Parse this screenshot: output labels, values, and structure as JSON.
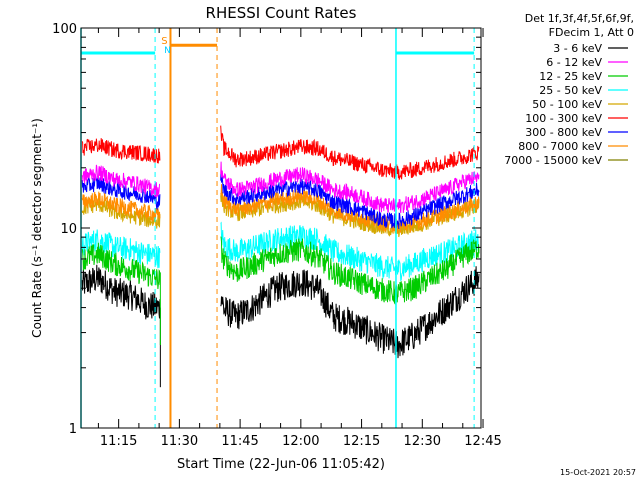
{
  "chart_data": {
    "type": "line",
    "title": "RHESSI Count Rates",
    "xlabel": "Start Time (22-Jun-06 11:05:42)",
    "ylabel": "Count Rate (s⁻¹ detector segment⁻¹)",
    "y_scale": "log",
    "ylim": [
      1,
      100
    ],
    "xlim_minutes": [
      5.7,
      104.5
    ],
    "y_ticks": [
      "1",
      "10",
      "100"
    ],
    "y_tick_values": [
      1,
      10,
      100
    ],
    "x_ticks": [
      "11:15",
      "11:30",
      "11:45",
      "12:00",
      "12:15",
      "12:30",
      "12:45"
    ],
    "x_tick_minutes": [
      15,
      30,
      45,
      60,
      75,
      90,
      105
    ],
    "legend_placement": "outside-right",
    "legend_header": [
      "Det 1f,3f,4f,5f,6f,9f,",
      "FDecim 1, Att 0"
    ],
    "timestamp": "15-Oct-2021 20:57",
    "data_gap_minutes": [
      28.0,
      39.5
    ],
    "series": [
      {
        "name": "3 - 6 keV",
        "color": "#000000",
        "profile": [
          [
            6,
            5.2
          ],
          [
            10,
            5.6
          ],
          [
            14,
            4.8
          ],
          [
            18,
            4.6
          ],
          [
            22,
            4.1
          ],
          [
            25,
            4.0
          ],
          [
            40,
            5.0
          ],
          [
            41,
            3.9
          ],
          [
            44,
            3.6
          ],
          [
            48,
            4.0
          ],
          [
            54,
            5.0
          ],
          [
            60,
            5.4
          ],
          [
            64,
            5.0
          ],
          [
            68,
            3.6
          ],
          [
            72,
            3.4
          ],
          [
            76,
            3.1
          ],
          [
            80,
            2.8
          ],
          [
            84,
            2.6
          ],
          [
            88,
            2.9
          ],
          [
            92,
            3.4
          ],
          [
            96,
            4.0
          ],
          [
            100,
            4.8
          ],
          [
            104,
            5.6
          ]
        ]
      },
      {
        "name": "6 - 12 keV",
        "color": "#ff00ff",
        "profile": [
          [
            6,
            18.0
          ],
          [
            10,
            19.0
          ],
          [
            14,
            17.5
          ],
          [
            18,
            17.0
          ],
          [
            22,
            16.0
          ],
          [
            25,
            15.5
          ],
          [
            40,
            21.0
          ],
          [
            41,
            17.5
          ],
          [
            44,
            15.5
          ],
          [
            48,
            16.0
          ],
          [
            54,
            17.5
          ],
          [
            60,
            18.5
          ],
          [
            64,
            17.5
          ],
          [
            68,
            15.5
          ],
          [
            72,
            15.0
          ],
          [
            76,
            14.0
          ],
          [
            80,
            13.0
          ],
          [
            84,
            12.8
          ],
          [
            88,
            13.5
          ],
          [
            92,
            14.5
          ],
          [
            96,
            15.5
          ],
          [
            100,
            17.0
          ],
          [
            104,
            18.0
          ]
        ]
      },
      {
        "name": "12 - 25 keV",
        "color": "#00cc00",
        "profile": [
          [
            6,
            7.0
          ],
          [
            10,
            7.4
          ],
          [
            14,
            6.6
          ],
          [
            18,
            6.2
          ],
          [
            22,
            5.8
          ],
          [
            25,
            5.5
          ],
          [
            40,
            8.5
          ],
          [
            41,
            6.8
          ],
          [
            44,
            6.0
          ],
          [
            48,
            6.5
          ],
          [
            54,
            7.4
          ],
          [
            60,
            7.8
          ],
          [
            64,
            7.2
          ],
          [
            68,
            6.0
          ],
          [
            72,
            5.6
          ],
          [
            76,
            5.2
          ],
          [
            80,
            4.9
          ],
          [
            84,
            4.7
          ],
          [
            88,
            5.0
          ],
          [
            92,
            5.6
          ],
          [
            96,
            6.2
          ],
          [
            100,
            7.2
          ],
          [
            104,
            8.0
          ]
        ]
      },
      {
        "name": "25 - 50 keV",
        "color": "#00ffff",
        "profile": [
          [
            6,
            8.2
          ],
          [
            10,
            8.8
          ],
          [
            14,
            8.0
          ],
          [
            18,
            7.8
          ],
          [
            22,
            7.4
          ],
          [
            25,
            7.2
          ],
          [
            40,
            10.0
          ],
          [
            41,
            8.2
          ],
          [
            44,
            7.6
          ],
          [
            48,
            8.0
          ],
          [
            54,
            8.8
          ],
          [
            60,
            9.2
          ],
          [
            64,
            8.8
          ],
          [
            68,
            7.6
          ],
          [
            72,
            7.2
          ],
          [
            76,
            6.8
          ],
          [
            80,
            6.4
          ],
          [
            84,
            6.2
          ],
          [
            88,
            6.6
          ],
          [
            92,
            7.2
          ],
          [
            96,
            7.6
          ],
          [
            100,
            8.2
          ],
          [
            104,
            8.8
          ]
        ]
      },
      {
        "name": "50 - 100 keV",
        "color": "#d4a800",
        "profile": [
          [
            6,
            12.5
          ],
          [
            10,
            13.2
          ],
          [
            14,
            12.0
          ],
          [
            18,
            11.5
          ],
          [
            22,
            11.0
          ],
          [
            25,
            10.8
          ],
          [
            40,
            15.5
          ],
          [
            41,
            12.8
          ],
          [
            44,
            11.8
          ],
          [
            48,
            12.2
          ],
          [
            54,
            13.0
          ],
          [
            60,
            13.6
          ],
          [
            64,
            13.0
          ],
          [
            68,
            11.5
          ],
          [
            72,
            11.0
          ],
          [
            76,
            10.5
          ],
          [
            80,
            10.0
          ],
          [
            84,
            9.8
          ],
          [
            88,
            10.2
          ],
          [
            92,
            10.8
          ],
          [
            96,
            11.5
          ],
          [
            100,
            12.2
          ],
          [
            104,
            13.0
          ]
        ]
      },
      {
        "name": "100 - 300 keV",
        "color": "#ff0000",
        "profile": [
          [
            6,
            25.0
          ],
          [
            10,
            26.0
          ],
          [
            14,
            24.5
          ],
          [
            18,
            24.0
          ],
          [
            22,
            23.5
          ],
          [
            25,
            23.0
          ],
          [
            40,
            31.0
          ],
          [
            41,
            25.0
          ],
          [
            44,
            22.0
          ],
          [
            48,
            22.5
          ],
          [
            54,
            24.0
          ],
          [
            60,
            25.5
          ],
          [
            64,
            25.0
          ],
          [
            68,
            22.5
          ],
          [
            72,
            21.5
          ],
          [
            76,
            20.5
          ],
          [
            80,
            19.5
          ],
          [
            84,
            19.0
          ],
          [
            88,
            19.5
          ],
          [
            92,
            20.5
          ],
          [
            96,
            21.5
          ],
          [
            100,
            22.5
          ],
          [
            104,
            24.0
          ]
        ]
      },
      {
        "name": "300 - 800 keV",
        "color": "#0000ff",
        "profile": [
          [
            6,
            16.0
          ],
          [
            10,
            16.8
          ],
          [
            14,
            15.5
          ],
          [
            18,
            15.0
          ],
          [
            22,
            14.5
          ],
          [
            25,
            13.5
          ],
          [
            40,
            19.0
          ],
          [
            41,
            15.5
          ],
          [
            44,
            14.0
          ],
          [
            48,
            14.5
          ],
          [
            54,
            15.5
          ],
          [
            60,
            16.2
          ],
          [
            64,
            15.5
          ],
          [
            68,
            13.5
          ],
          [
            72,
            12.8
          ],
          [
            76,
            12.0
          ],
          [
            80,
            11.0
          ],
          [
            84,
            10.8
          ],
          [
            88,
            11.5
          ],
          [
            92,
            12.5
          ],
          [
            96,
            13.5
          ],
          [
            100,
            14.5
          ],
          [
            104,
            15.5
          ]
        ]
      },
      {
        "name": "800 - 7000 keV",
        "color": "#ff8c00",
        "profile": [
          [
            6,
            13.5
          ],
          [
            10,
            14.0
          ],
          [
            14,
            13.0
          ],
          [
            18,
            12.5
          ],
          [
            22,
            12.0
          ],
          [
            25,
            11.5
          ],
          [
            40,
            16.5
          ],
          [
            41,
            13.5
          ],
          [
            44,
            12.5
          ],
          [
            48,
            12.8
          ],
          [
            54,
            13.8
          ],
          [
            60,
            14.5
          ],
          [
            64,
            13.8
          ],
          [
            68,
            12.2
          ],
          [
            72,
            11.6
          ],
          [
            76,
            11.2
          ],
          [
            80,
            10.6
          ],
          [
            84,
            10.2
          ],
          [
            88,
            10.6
          ],
          [
            92,
            11.2
          ],
          [
            96,
            11.8
          ],
          [
            100,
            12.6
          ],
          [
            104,
            13.5
          ]
        ]
      },
      {
        "name": "7000 - 15000 keV",
        "color": "#808000",
        "profile": []
      }
    ],
    "annotations": [
      {
        "label": "S",
        "minute": 27.8,
        "color": "#ff8c00"
      },
      {
        "label": "N",
        "minute": 27.8,
        "color": "#00ccff"
      }
    ],
    "attenuator_level": 75
  }
}
